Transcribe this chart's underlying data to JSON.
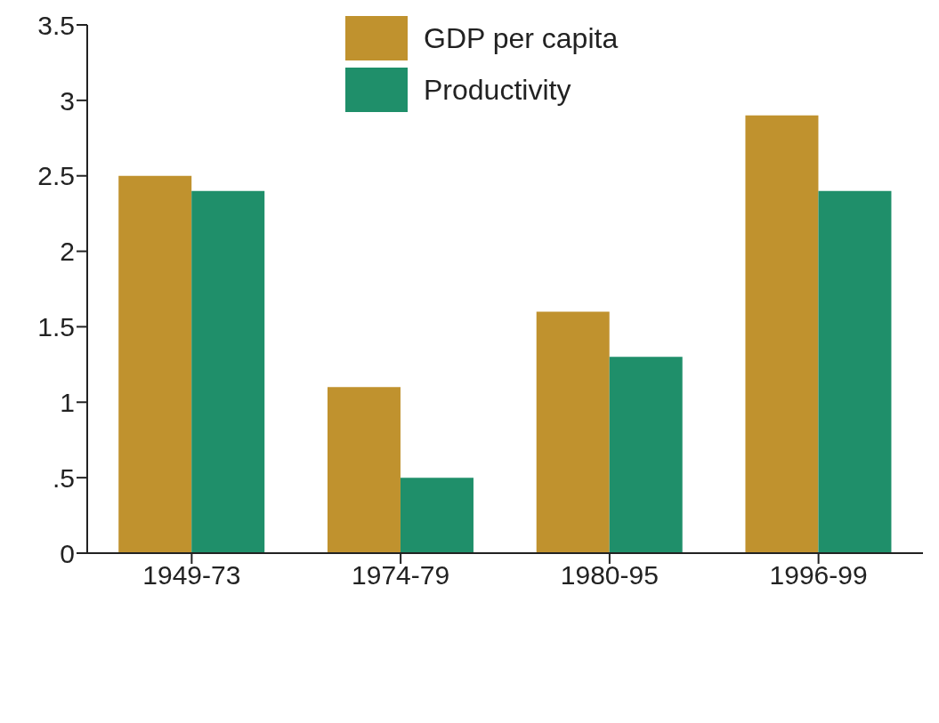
{
  "chart_data": {
    "type": "bar",
    "categories": [
      "1949-73",
      "1974-79",
      "1980-95",
      "1996-99"
    ],
    "series": [
      {
        "name": "GDP per capita",
        "color": "#c0922e",
        "values": [
          2.5,
          1.1,
          1.6,
          2.9
        ]
      },
      {
        "name": "Productivity",
        "color": "#1f8f6a",
        "values": [
          2.4,
          0.5,
          1.3,
          2.4
        ]
      }
    ],
    "ylim": [
      0,
      3.5
    ],
    "yticks": [
      0,
      {
        "value": 0.5,
        "label": ".5"
      },
      1,
      1.5,
      2,
      2.5,
      3,
      3.5
    ],
    "grid": false,
    "legend": "top"
  }
}
